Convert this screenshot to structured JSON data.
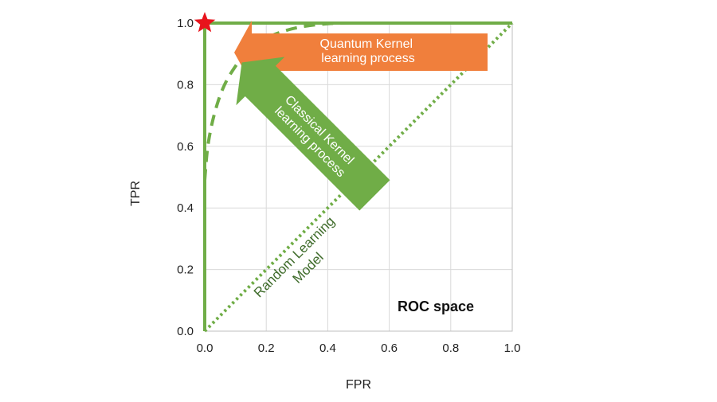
{
  "chart_data": {
    "type": "line",
    "title": "",
    "xlabel": "FPR",
    "ylabel": "TPR",
    "xlim": [
      0.0,
      1.0
    ],
    "ylim": [
      0.0,
      1.0
    ],
    "x_ticks": [
      "0.0",
      "0.2",
      "0.4",
      "0.6",
      "0.8",
      "1.0"
    ],
    "y_ticks": [
      "0.0",
      "0.2",
      "0.4",
      "0.6",
      "0.8",
      "1.0"
    ],
    "grid": true,
    "in_plot_label": "ROC space",
    "series": [
      {
        "style": "solid",
        "color": "#70ad47",
        "x": [
          0.0,
          0.0,
          1.0
        ],
        "y": [
          0.0,
          1.0,
          1.0
        ]
      },
      {
        "style": "dotted",
        "color": "#70ad47",
        "x": [
          0.0,
          1.0
        ],
        "y": [
          0.0,
          1.0
        ]
      },
      {
        "style": "dashed",
        "color": "#70ad47",
        "x": [
          0.0,
          0.01,
          0.03,
          0.06,
          0.1,
          0.15,
          0.22,
          0.3,
          0.4,
          0.5
        ],
        "y": [
          0.49,
          0.6,
          0.7,
          0.79,
          0.86,
          0.92,
          0.96,
          0.985,
          0.998,
          1.0
        ]
      }
    ],
    "markers": [
      {
        "shape": "star",
        "color": "#e8141c",
        "x": 0.0,
        "y": 1.0
      }
    ],
    "annotations": [
      {
        "text": "Quantum Kernel\nlearning process",
        "kind": "arrow",
        "color": "#f07f3c",
        "direction": "left"
      },
      {
        "text": "Classical Kernel\nlearning process",
        "kind": "arrow",
        "color": "#70ad47",
        "direction": "up-left"
      },
      {
        "text": "Random Learning\nModel",
        "kind": "label",
        "color": "#3e6b2a"
      }
    ]
  }
}
